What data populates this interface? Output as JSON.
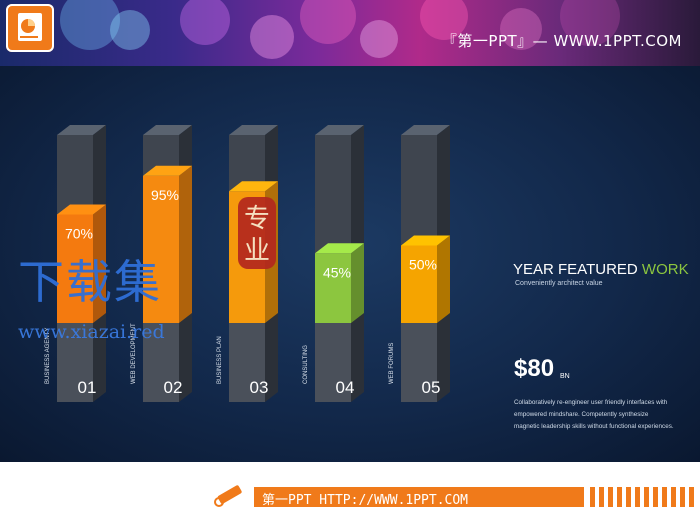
{
  "header": {
    "title": "『第一PPT』— WWW.1PPT.COM"
  },
  "chart_data": {
    "type": "bar",
    "categories": [
      "BUSINESS AGENTY",
      "WEB DEVELOPMENT",
      "BUSINESS PLAN",
      "CONSULTING",
      "WEB FORUMS"
    ],
    "numbers": [
      "01",
      "02",
      "03",
      "04",
      "05"
    ],
    "values": [
      70,
      95,
      85,
      45,
      50
    ],
    "value_labels": [
      "70%",
      "95%",
      "",
      "45%",
      "50%"
    ],
    "ylim": [
      0,
      100
    ],
    "colors": [
      "#f47a0f",
      "#f58a10",
      "#f59a0c",
      "#8cc63f",
      "#f5a400"
    ]
  },
  "side": {
    "title_main": "YEAR FEATURED ",
    "title_accent": "WORK",
    "subtitle": "Conveniently architect value",
    "price": "$80",
    "price_unit": "BN",
    "description": "Collaboratively re-engineer user friendly interfaces with empowered mindshare. Competently synthesize magnetic leadership skills without functional experiences."
  },
  "watermark": {
    "text": "下载集",
    "url": "www.xiazai.red",
    "seal_text": "专业"
  },
  "footer": {
    "text": "第一PPT HTTP://WWW.1PPT.COM"
  },
  "colors": {
    "accent": "#f07a1a",
    "accent_green": "#8cc63f",
    "background": "#12284a"
  }
}
